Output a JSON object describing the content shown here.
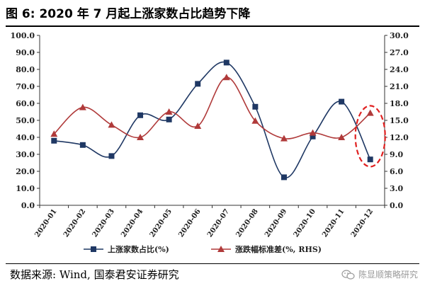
{
  "figure": {
    "title": "图 6:  2020 年 7 月起上涨家数占比趋势下降",
    "source": "数据来源:  Wind, 国泰君安证券研究",
    "watermark": "陈显顺策略研究",
    "watermark_icon": "wechat-icon"
  },
  "chart_data": {
    "type": "line",
    "title": "",
    "categories": [
      "2020-01",
      "2020-02",
      "2020-03",
      "2020-04",
      "2020-05",
      "2020-06",
      "2020-07",
      "2020-08",
      "2020-09",
      "2020-10",
      "2020-11",
      "2020-12"
    ],
    "series": [
      {
        "name": "上涨家数占比(%)",
        "axis": "left",
        "color": "#1f3864",
        "marker": "square",
        "values": [
          38,
          35.5,
          29,
          53,
          50.5,
          71.5,
          84,
          58,
          16.5,
          40.5,
          61,
          27
        ]
      },
      {
        "name": "涨跌幅标准差(%, RHS)",
        "axis": "right",
        "color": "#b03a3a",
        "marker": "triangle",
        "values": [
          12.6,
          17.3,
          14.2,
          12.0,
          16.5,
          14.0,
          22.6,
          14.9,
          11.8,
          12.8,
          12.0,
          16.3
        ]
      }
    ],
    "y_left": {
      "lim": [
        0,
        100
      ],
      "ticks": [
        "0.0",
        "10.0",
        "20.0",
        "30.0",
        "40.0",
        "50.0",
        "60.0",
        "70.0",
        "80.0",
        "90.0",
        "100.0"
      ]
    },
    "y_right": {
      "lim": [
        0,
        30
      ],
      "ticks": [
        "0.0",
        "3.0",
        "6.0",
        "9.0",
        "12.0",
        "15.0",
        "18.0",
        "21.0",
        "24.0",
        "27.0",
        "30.0"
      ]
    },
    "grid": false,
    "legend_position": "bottom",
    "annotation": {
      "shape": "dashed-ellipse",
      "color": "#e02020",
      "category": "2020-12"
    }
  }
}
